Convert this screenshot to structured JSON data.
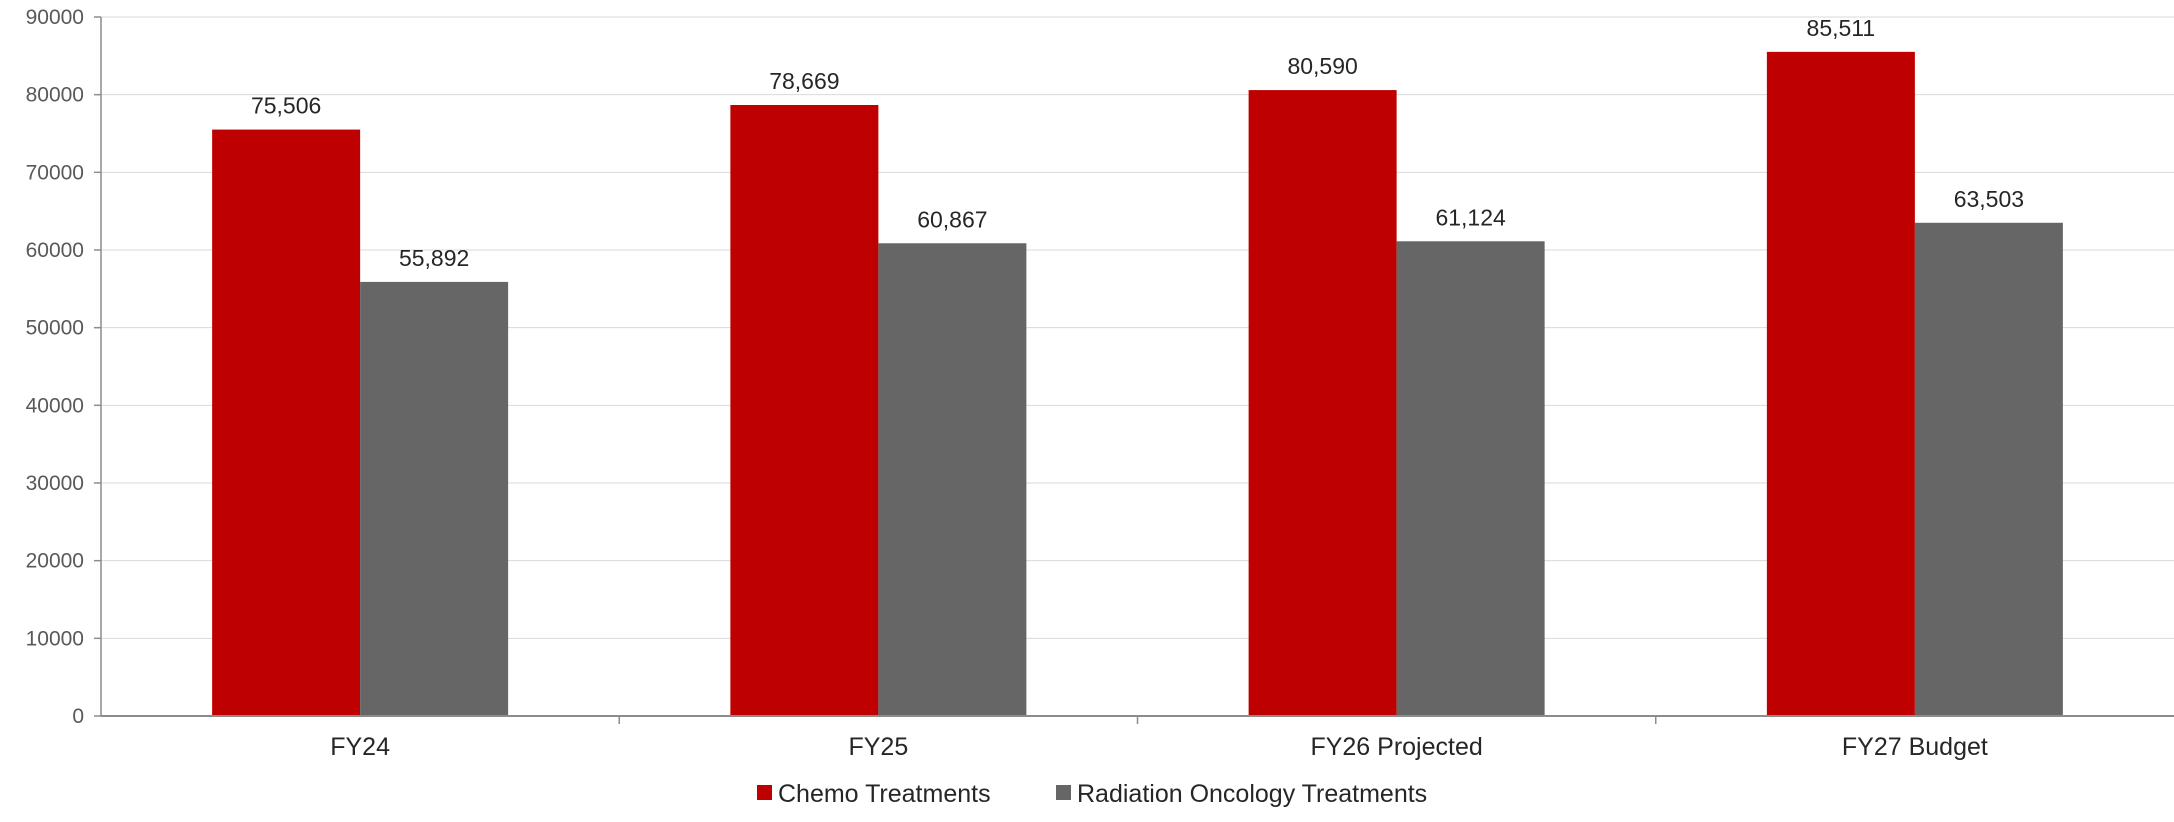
{
  "chart_data": {
    "type": "bar",
    "title": "",
    "xlabel": "",
    "ylabel": "",
    "categories": [
      "FY24",
      "FY25",
      "FY26 Projected",
      "FY27 Budget"
    ],
    "series": [
      {
        "name": "Chemo Treatments",
        "color": "#BE0000",
        "values": [
          75506,
          78669,
          80590,
          85511
        ],
        "labels": [
          "75,506",
          "78,669",
          "80,590",
          "85,511"
        ]
      },
      {
        "name": "Radiation Oncology Treatments",
        "color": "#666666",
        "values": [
          55892,
          60867,
          61124,
          63503
        ],
        "labels": [
          "55,892",
          "60,867",
          "61,124",
          "63,503"
        ]
      }
    ],
    "ylim": [
      0,
      90000
    ],
    "yticks": [
      "0",
      "10000",
      "20000",
      "30000",
      "40000",
      "50000",
      "60000",
      "70000",
      "80000",
      "90000"
    ],
    "grid": true,
    "legend_position": "bottom"
  }
}
